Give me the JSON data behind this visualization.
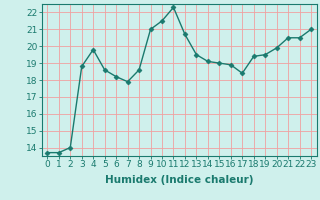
{
  "x": [
    0,
    1,
    2,
    3,
    4,
    5,
    6,
    7,
    8,
    9,
    10,
    11,
    12,
    13,
    14,
    15,
    16,
    17,
    18,
    19,
    20,
    21,
    22,
    23
  ],
  "y": [
    13.7,
    13.7,
    14.0,
    18.8,
    19.8,
    18.6,
    18.2,
    17.9,
    18.6,
    21.0,
    21.5,
    22.3,
    20.7,
    19.5,
    19.1,
    19.0,
    18.9,
    18.4,
    19.4,
    19.5,
    19.9,
    20.5,
    20.5,
    21.0
  ],
  "line_color": "#1a7a6e",
  "marker": "D",
  "marker_size": 2.5,
  "bg_color": "#cff0ec",
  "grid_color": "#f0a0a0",
  "xlabel": "Humidex (Indice chaleur)",
  "xlim": [
    -0.5,
    23.5
  ],
  "ylim": [
    13.5,
    22.5
  ],
  "yticks": [
    14,
    15,
    16,
    17,
    18,
    19,
    20,
    21,
    22
  ],
  "xticks": [
    0,
    1,
    2,
    3,
    4,
    5,
    6,
    7,
    8,
    9,
    10,
    11,
    12,
    13,
    14,
    15,
    16,
    17,
    18,
    19,
    20,
    21,
    22,
    23
  ],
  "tick_label_fontsize": 6.5,
  "xlabel_fontsize": 7.5
}
